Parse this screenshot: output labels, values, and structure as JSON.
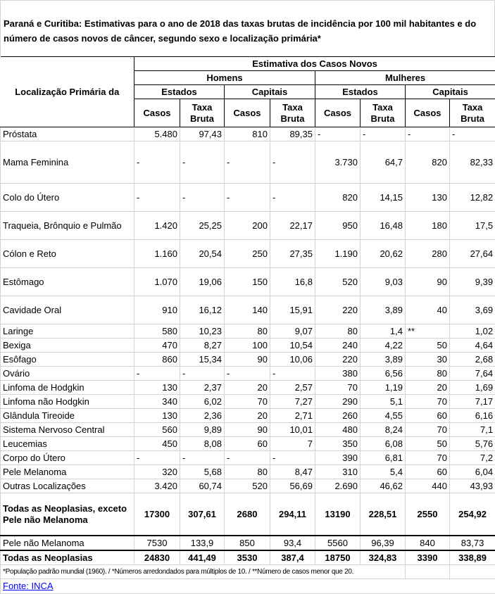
{
  "title": "Paraná e Curitiba: Estimativas para o ano de 2018 das taxas brutas de incidência por 100 mil habitantes e do número de casos novos de câncer, segundo sexo e localização primária*",
  "header": {
    "location_label": "Localização Primária da",
    "estimate_label": "Estimativa dos Casos Novos",
    "men_label": "Homens",
    "women_label": "Mulheres",
    "states_label": "Estados",
    "capitals_label": "Capitais",
    "cases_label": "Casos",
    "rate_label_line1": "Taxa",
    "rate_label_line2": "Bruta"
  },
  "rows": [
    {
      "label": "Próstata",
      "values": [
        "5.480",
        "97,43",
        "810",
        "89,35",
        "-",
        "-",
        "-",
        "-"
      ]
    },
    {
      "label": "Mama Feminina",
      "values": [
        "-",
        "-",
        "-",
        "-",
        "3.730",
        "64,7",
        "820",
        "82,33"
      ]
    },
    {
      "label": "Colo do Útero",
      "values": [
        "-",
        "-",
        "-",
        "-",
        "820",
        "14,15",
        "130",
        "12,82"
      ]
    },
    {
      "label": "Traqueia, Brônquio e Pulmão",
      "values": [
        "1.420",
        "25,25",
        "200",
        "22,17",
        "950",
        "16,48",
        "180",
        "17,5"
      ]
    },
    {
      "label": "Cólon e Reto",
      "values": [
        "1.160",
        "20,54",
        "250",
        "27,35",
        "1.190",
        "20,62",
        "280",
        "27,64"
      ]
    },
    {
      "label": "Estômago",
      "values": [
        "1.070",
        "19,06",
        "150",
        "16,8",
        "520",
        "9,03",
        "90",
        "9,39"
      ]
    },
    {
      "label": "Cavidade Oral",
      "values": [
        "910",
        "16,12",
        "140",
        "15,91",
        "220",
        "3,89",
        "40",
        "3,69"
      ]
    },
    {
      "label": "Laringe",
      "values": [
        "580",
        "10,23",
        "80",
        "9,07",
        "80",
        "1,4",
        "**",
        "1,02"
      ]
    },
    {
      "label": "Bexiga",
      "values": [
        "470",
        "8,27",
        "100",
        "10,54",
        "240",
        "4,22",
        "50",
        "4,64"
      ]
    },
    {
      "label": "Esôfago",
      "values": [
        "860",
        "15,34",
        "90",
        "10,06",
        "220",
        "3,89",
        "30",
        "2,68"
      ]
    },
    {
      "label": "Ovário",
      "values": [
        "-",
        "-",
        "-",
        "-",
        "380",
        "6,56",
        "80",
        "7,64"
      ]
    },
    {
      "label": "Linfoma de Hodgkin",
      "values": [
        "130",
        "2,37",
        "20",
        "2,57",
        "70",
        "1,19",
        "20",
        "1,69"
      ]
    },
    {
      "label": "Linfoma não Hodgkin",
      "values": [
        "340",
        "6,02",
        "70",
        "7,27",
        "290",
        "5,1",
        "70",
        "7,17"
      ]
    },
    {
      "label": "Glândula Tireoide",
      "values": [
        "130",
        "2,36",
        "20",
        "2,71",
        "260",
        "4,55",
        "60",
        "6,16"
      ]
    },
    {
      "label": "Sistema Nervoso Central",
      "values": [
        "560",
        "9,89",
        "90",
        "10,01",
        "480",
        "8,24",
        "70",
        "7,1"
      ]
    },
    {
      "label": "Leucemias",
      "values": [
        "450",
        "8,08",
        "60",
        "7",
        "350",
        "6,08",
        "50",
        "5,76"
      ]
    },
    {
      "label": "Corpo do Útero",
      "values": [
        "-",
        "-",
        "-",
        "-",
        "390",
        "6,81",
        "70",
        "7,2"
      ]
    },
    {
      "label": "Pele Melanoma",
      "values": [
        "320",
        "5,68",
        "80",
        "8,47",
        "310",
        "5,4",
        "60",
        "6,04"
      ]
    },
    {
      "label": "Outras Localizações",
      "values": [
        "3.420",
        "60,74",
        "520",
        "56,69",
        "2.690",
        "46,62",
        "440",
        "43,93"
      ]
    }
  ],
  "total_excl": {
    "label_line1": "Todas as Neoplasias, exceto",
    "label_line2": "Pele não Melanoma",
    "values": [
      "17300",
      "307,61",
      "2680",
      "294,11",
      "13190",
      "228,51",
      "2550",
      "254,92"
    ]
  },
  "skin_non_melanoma": {
    "label": "Pele não Melanoma",
    "values": [
      "7530",
      "133,9",
      "850",
      "93,4",
      "5560",
      "96,39",
      "840",
      "83,73"
    ]
  },
  "total_all": {
    "label": "Todas as Neoplasias",
    "values": [
      "24830",
      "441,49",
      "3530",
      "387,4",
      "18750",
      "324,83",
      "3390",
      "338,89"
    ]
  },
  "footnote": "*População padrão mundial (1960). / *Números arredondados para múltiplos de 10. / **Número de casos menor que 20.",
  "source_link": "Fonte: INCA",
  "link_color": "#0000ff"
}
